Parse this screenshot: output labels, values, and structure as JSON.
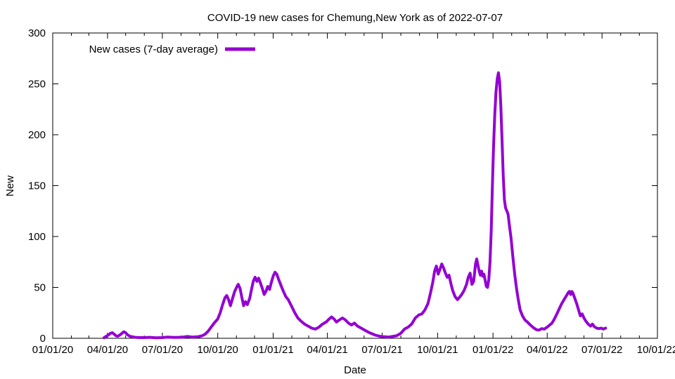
{
  "page": {
    "background": "#ffffff",
    "axis_color": "#000000",
    "text_color": "#000000"
  },
  "chart_data": {
    "type": "line",
    "title": "COVID-19 new cases for Chemung,New York as of 2022-07-07",
    "xlabel": "Date",
    "ylabel": "New",
    "grid": false,
    "axes_mirrored_ticks": true,
    "legend": {
      "label": "New cases (7-day average)",
      "position": "top-left-inside"
    },
    "xlim": [
      "2020-01-01",
      "2022-10-01"
    ],
    "ylim": [
      0,
      300
    ],
    "x_ticks": [
      {
        "date": "2020-01-01",
        "label": "01/01/20"
      },
      {
        "date": "2020-04-01",
        "label": "04/01/20"
      },
      {
        "date": "2020-07-01",
        "label": "07/01/20"
      },
      {
        "date": "2020-10-01",
        "label": "10/01/20"
      },
      {
        "date": "2021-01-01",
        "label": "01/01/21"
      },
      {
        "date": "2021-04-01",
        "label": "04/01/21"
      },
      {
        "date": "2021-07-01",
        "label": "07/01/21"
      },
      {
        "date": "2021-10-01",
        "label": "10/01/21"
      },
      {
        "date": "2022-01-01",
        "label": "01/01/22"
      },
      {
        "date": "2022-04-01",
        "label": "04/01/22"
      },
      {
        "date": "2022-07-01",
        "label": "07/01/22"
      },
      {
        "date": "2022-10-01",
        "label": "10/01/22"
      }
    ],
    "x_minor_tick_interval": "1 month",
    "y_ticks": [
      {
        "value": 0,
        "label": "0"
      },
      {
        "value": 50,
        "label": "50"
      },
      {
        "value": 100,
        "label": "100"
      },
      {
        "value": 150,
        "label": "150"
      },
      {
        "value": 200,
        "label": "200"
      },
      {
        "value": 250,
        "label": "250"
      },
      {
        "value": 300,
        "label": "300"
      }
    ],
    "series": [
      {
        "name": "New cases (7-day average)",
        "color": "#9400d3",
        "line_width": 4,
        "points": [
          [
            "2020-03-26",
            0.5
          ],
          [
            "2020-03-30",
            2
          ],
          [
            "2020-04-03",
            3.5
          ],
          [
            "2020-04-06",
            5
          ],
          [
            "2020-04-09",
            5.5
          ],
          [
            "2020-04-12",
            4
          ],
          [
            "2020-04-15",
            2.5
          ],
          [
            "2020-04-18",
            2
          ],
          [
            "2020-04-22",
            3.5
          ],
          [
            "2020-04-25",
            5
          ],
          [
            "2020-04-28",
            6.5
          ],
          [
            "2020-05-01",
            5.5
          ],
          [
            "2020-05-04",
            3.5
          ],
          [
            "2020-05-08",
            2
          ],
          [
            "2020-05-12",
            1.5
          ],
          [
            "2020-05-17",
            1
          ],
          [
            "2020-05-24",
            0.7
          ],
          [
            "2020-06-01",
            0.7
          ],
          [
            "2020-06-10",
            1
          ],
          [
            "2020-06-20",
            0.5
          ],
          [
            "2020-07-01",
            0.7
          ],
          [
            "2020-07-10",
            1.2
          ],
          [
            "2020-07-20",
            0.8
          ],
          [
            "2020-08-01",
            1
          ],
          [
            "2020-08-12",
            1.8
          ],
          [
            "2020-08-20",
            1.2
          ],
          [
            "2020-08-29",
            1.5
          ],
          [
            "2020-09-05",
            2.5
          ],
          [
            "2020-09-10",
            4
          ],
          [
            "2020-09-15",
            7
          ],
          [
            "2020-09-20",
            11
          ],
          [
            "2020-09-25",
            15
          ],
          [
            "2020-10-01",
            19
          ],
          [
            "2020-10-05",
            25
          ],
          [
            "2020-10-09",
            33
          ],
          [
            "2020-10-13",
            40
          ],
          [
            "2020-10-16",
            42
          ],
          [
            "2020-10-19",
            38
          ],
          [
            "2020-10-22",
            32
          ],
          [
            "2020-10-26",
            40
          ],
          [
            "2020-10-29",
            46
          ],
          [
            "2020-11-02",
            51
          ],
          [
            "2020-11-04",
            53
          ],
          [
            "2020-11-07",
            49
          ],
          [
            "2020-11-10",
            40
          ],
          [
            "2020-11-13",
            32
          ],
          [
            "2020-11-16",
            36
          ],
          [
            "2020-11-19",
            33
          ],
          [
            "2020-11-23",
            39
          ],
          [
            "2020-11-26",
            48
          ],
          [
            "2020-11-29",
            56
          ],
          [
            "2020-12-02",
            60
          ],
          [
            "2020-12-05",
            56
          ],
          [
            "2020-12-08",
            59
          ],
          [
            "2020-12-11",
            54
          ],
          [
            "2020-12-14",
            49
          ],
          [
            "2020-12-17",
            43
          ],
          [
            "2020-12-20",
            46
          ],
          [
            "2020-12-23",
            51
          ],
          [
            "2020-12-26",
            48
          ],
          [
            "2020-12-29",
            55
          ],
          [
            "2021-01-01",
            61
          ],
          [
            "2021-01-04",
            65
          ],
          [
            "2021-01-07",
            63
          ],
          [
            "2021-01-10",
            58
          ],
          [
            "2021-01-14",
            52
          ],
          [
            "2021-01-18",
            46
          ],
          [
            "2021-01-22",
            41
          ],
          [
            "2021-01-26",
            38
          ],
          [
            "2021-02-01",
            31
          ],
          [
            "2021-02-06",
            25
          ],
          [
            "2021-02-11",
            20
          ],
          [
            "2021-02-16",
            17
          ],
          [
            "2021-02-22",
            14
          ],
          [
            "2021-02-28",
            12
          ],
          [
            "2021-03-06",
            10
          ],
          [
            "2021-03-12",
            9
          ],
          [
            "2021-03-18",
            11
          ],
          [
            "2021-03-24",
            14
          ],
          [
            "2021-03-30",
            16
          ],
          [
            "2021-04-04",
            19
          ],
          [
            "2021-04-08",
            21
          ],
          [
            "2021-04-12",
            19
          ],
          [
            "2021-04-16",
            16
          ],
          [
            "2021-04-21",
            18
          ],
          [
            "2021-04-26",
            20
          ],
          [
            "2021-05-01",
            18
          ],
          [
            "2021-05-06",
            15
          ],
          [
            "2021-05-11",
            13
          ],
          [
            "2021-05-16",
            15
          ],
          [
            "2021-05-21",
            12
          ],
          [
            "2021-05-27",
            10
          ],
          [
            "2021-06-02",
            8
          ],
          [
            "2021-06-08",
            6
          ],
          [
            "2021-06-14",
            4.5
          ],
          [
            "2021-06-20",
            3
          ],
          [
            "2021-06-27",
            2
          ],
          [
            "2021-07-04",
            1.5
          ],
          [
            "2021-07-11",
            1.2
          ],
          [
            "2021-07-18",
            1.8
          ],
          [
            "2021-07-25",
            2.5
          ],
          [
            "2021-08-01",
            5
          ],
          [
            "2021-08-07",
            9
          ],
          [
            "2021-08-13",
            11
          ],
          [
            "2021-08-19",
            14
          ],
          [
            "2021-08-25",
            20
          ],
          [
            "2021-08-31",
            23
          ],
          [
            "2021-09-05",
            24
          ],
          [
            "2021-09-10",
            28
          ],
          [
            "2021-09-15",
            34
          ],
          [
            "2021-09-19",
            44
          ],
          [
            "2021-09-23",
            55
          ],
          [
            "2021-09-26",
            66
          ],
          [
            "2021-09-29",
            71
          ],
          [
            "2021-10-02",
            63
          ],
          [
            "2021-10-05",
            68
          ],
          [
            "2021-10-08",
            73
          ],
          [
            "2021-10-11",
            69
          ],
          [
            "2021-10-14",
            64
          ],
          [
            "2021-10-17",
            60
          ],
          [
            "2021-10-20",
            62
          ],
          [
            "2021-10-23",
            54
          ],
          [
            "2021-10-26",
            47
          ],
          [
            "2021-10-30",
            41
          ],
          [
            "2021-11-03",
            38
          ],
          [
            "2021-11-06",
            40
          ],
          [
            "2021-11-10",
            43
          ],
          [
            "2021-11-14",
            47
          ],
          [
            "2021-11-18",
            53
          ],
          [
            "2021-11-21",
            60
          ],
          [
            "2021-11-24",
            64
          ],
          [
            "2021-11-27",
            53
          ],
          [
            "2021-11-30",
            56
          ],
          [
            "2021-12-03",
            73
          ],
          [
            "2021-12-05",
            78
          ],
          [
            "2021-12-07",
            72
          ],
          [
            "2021-12-09",
            66
          ],
          [
            "2021-12-11",
            62
          ],
          [
            "2021-12-13",
            66
          ],
          [
            "2021-12-15",
            61
          ],
          [
            "2021-12-17",
            63
          ],
          [
            "2021-12-19",
            57
          ],
          [
            "2021-12-21",
            51
          ],
          [
            "2021-12-23",
            50
          ],
          [
            "2021-12-25",
            58
          ],
          [
            "2021-12-27",
            75
          ],
          [
            "2021-12-29",
            105
          ],
          [
            "2021-12-31",
            150
          ],
          [
            "2022-01-02",
            190
          ],
          [
            "2022-01-04",
            220
          ],
          [
            "2022-01-06",
            242
          ],
          [
            "2022-01-08",
            255
          ],
          [
            "2022-01-10",
            261
          ],
          [
            "2022-01-12",
            252
          ],
          [
            "2022-01-14",
            228
          ],
          [
            "2022-01-16",
            195
          ],
          [
            "2022-01-18",
            160
          ],
          [
            "2022-01-20",
            136
          ],
          [
            "2022-01-22",
            128
          ],
          [
            "2022-01-24",
            125
          ],
          [
            "2022-01-26",
            122
          ],
          [
            "2022-01-28",
            112
          ],
          [
            "2022-01-31",
            98
          ],
          [
            "2022-02-03",
            80
          ],
          [
            "2022-02-06",
            63
          ],
          [
            "2022-02-09",
            49
          ],
          [
            "2022-02-12",
            38
          ],
          [
            "2022-02-15",
            28
          ],
          [
            "2022-02-19",
            22
          ],
          [
            "2022-02-23",
            18
          ],
          [
            "2022-02-27",
            16
          ],
          [
            "2022-03-04",
            13
          ],
          [
            "2022-03-09",
            10.5
          ],
          [
            "2022-03-14",
            8.5
          ],
          [
            "2022-03-18",
            8
          ],
          [
            "2022-03-23",
            9.5
          ],
          [
            "2022-03-27",
            9
          ],
          [
            "2022-04-01",
            11
          ],
          [
            "2022-04-05",
            13
          ],
          [
            "2022-04-09",
            15
          ],
          [
            "2022-04-13",
            19
          ],
          [
            "2022-04-17",
            24
          ],
          [
            "2022-04-21",
            29
          ],
          [
            "2022-04-25",
            34
          ],
          [
            "2022-04-29",
            38
          ],
          [
            "2022-05-03",
            42
          ],
          [
            "2022-05-06",
            45
          ],
          [
            "2022-05-08",
            46
          ],
          [
            "2022-05-10",
            43
          ],
          [
            "2022-05-12",
            46
          ],
          [
            "2022-05-14",
            44
          ],
          [
            "2022-05-17",
            39
          ],
          [
            "2022-05-20",
            34
          ],
          [
            "2022-05-23",
            28
          ],
          [
            "2022-05-26",
            22
          ],
          [
            "2022-05-29",
            24
          ],
          [
            "2022-06-01",
            20
          ],
          [
            "2022-06-04",
            17
          ],
          [
            "2022-06-08",
            14
          ],
          [
            "2022-06-12",
            12
          ],
          [
            "2022-06-15",
            14
          ],
          [
            "2022-06-18",
            11.5
          ],
          [
            "2022-06-22",
            10
          ],
          [
            "2022-06-26",
            9.5
          ],
          [
            "2022-06-30",
            10
          ],
          [
            "2022-07-03",
            9
          ],
          [
            "2022-07-07",
            10
          ]
        ]
      }
    ]
  }
}
